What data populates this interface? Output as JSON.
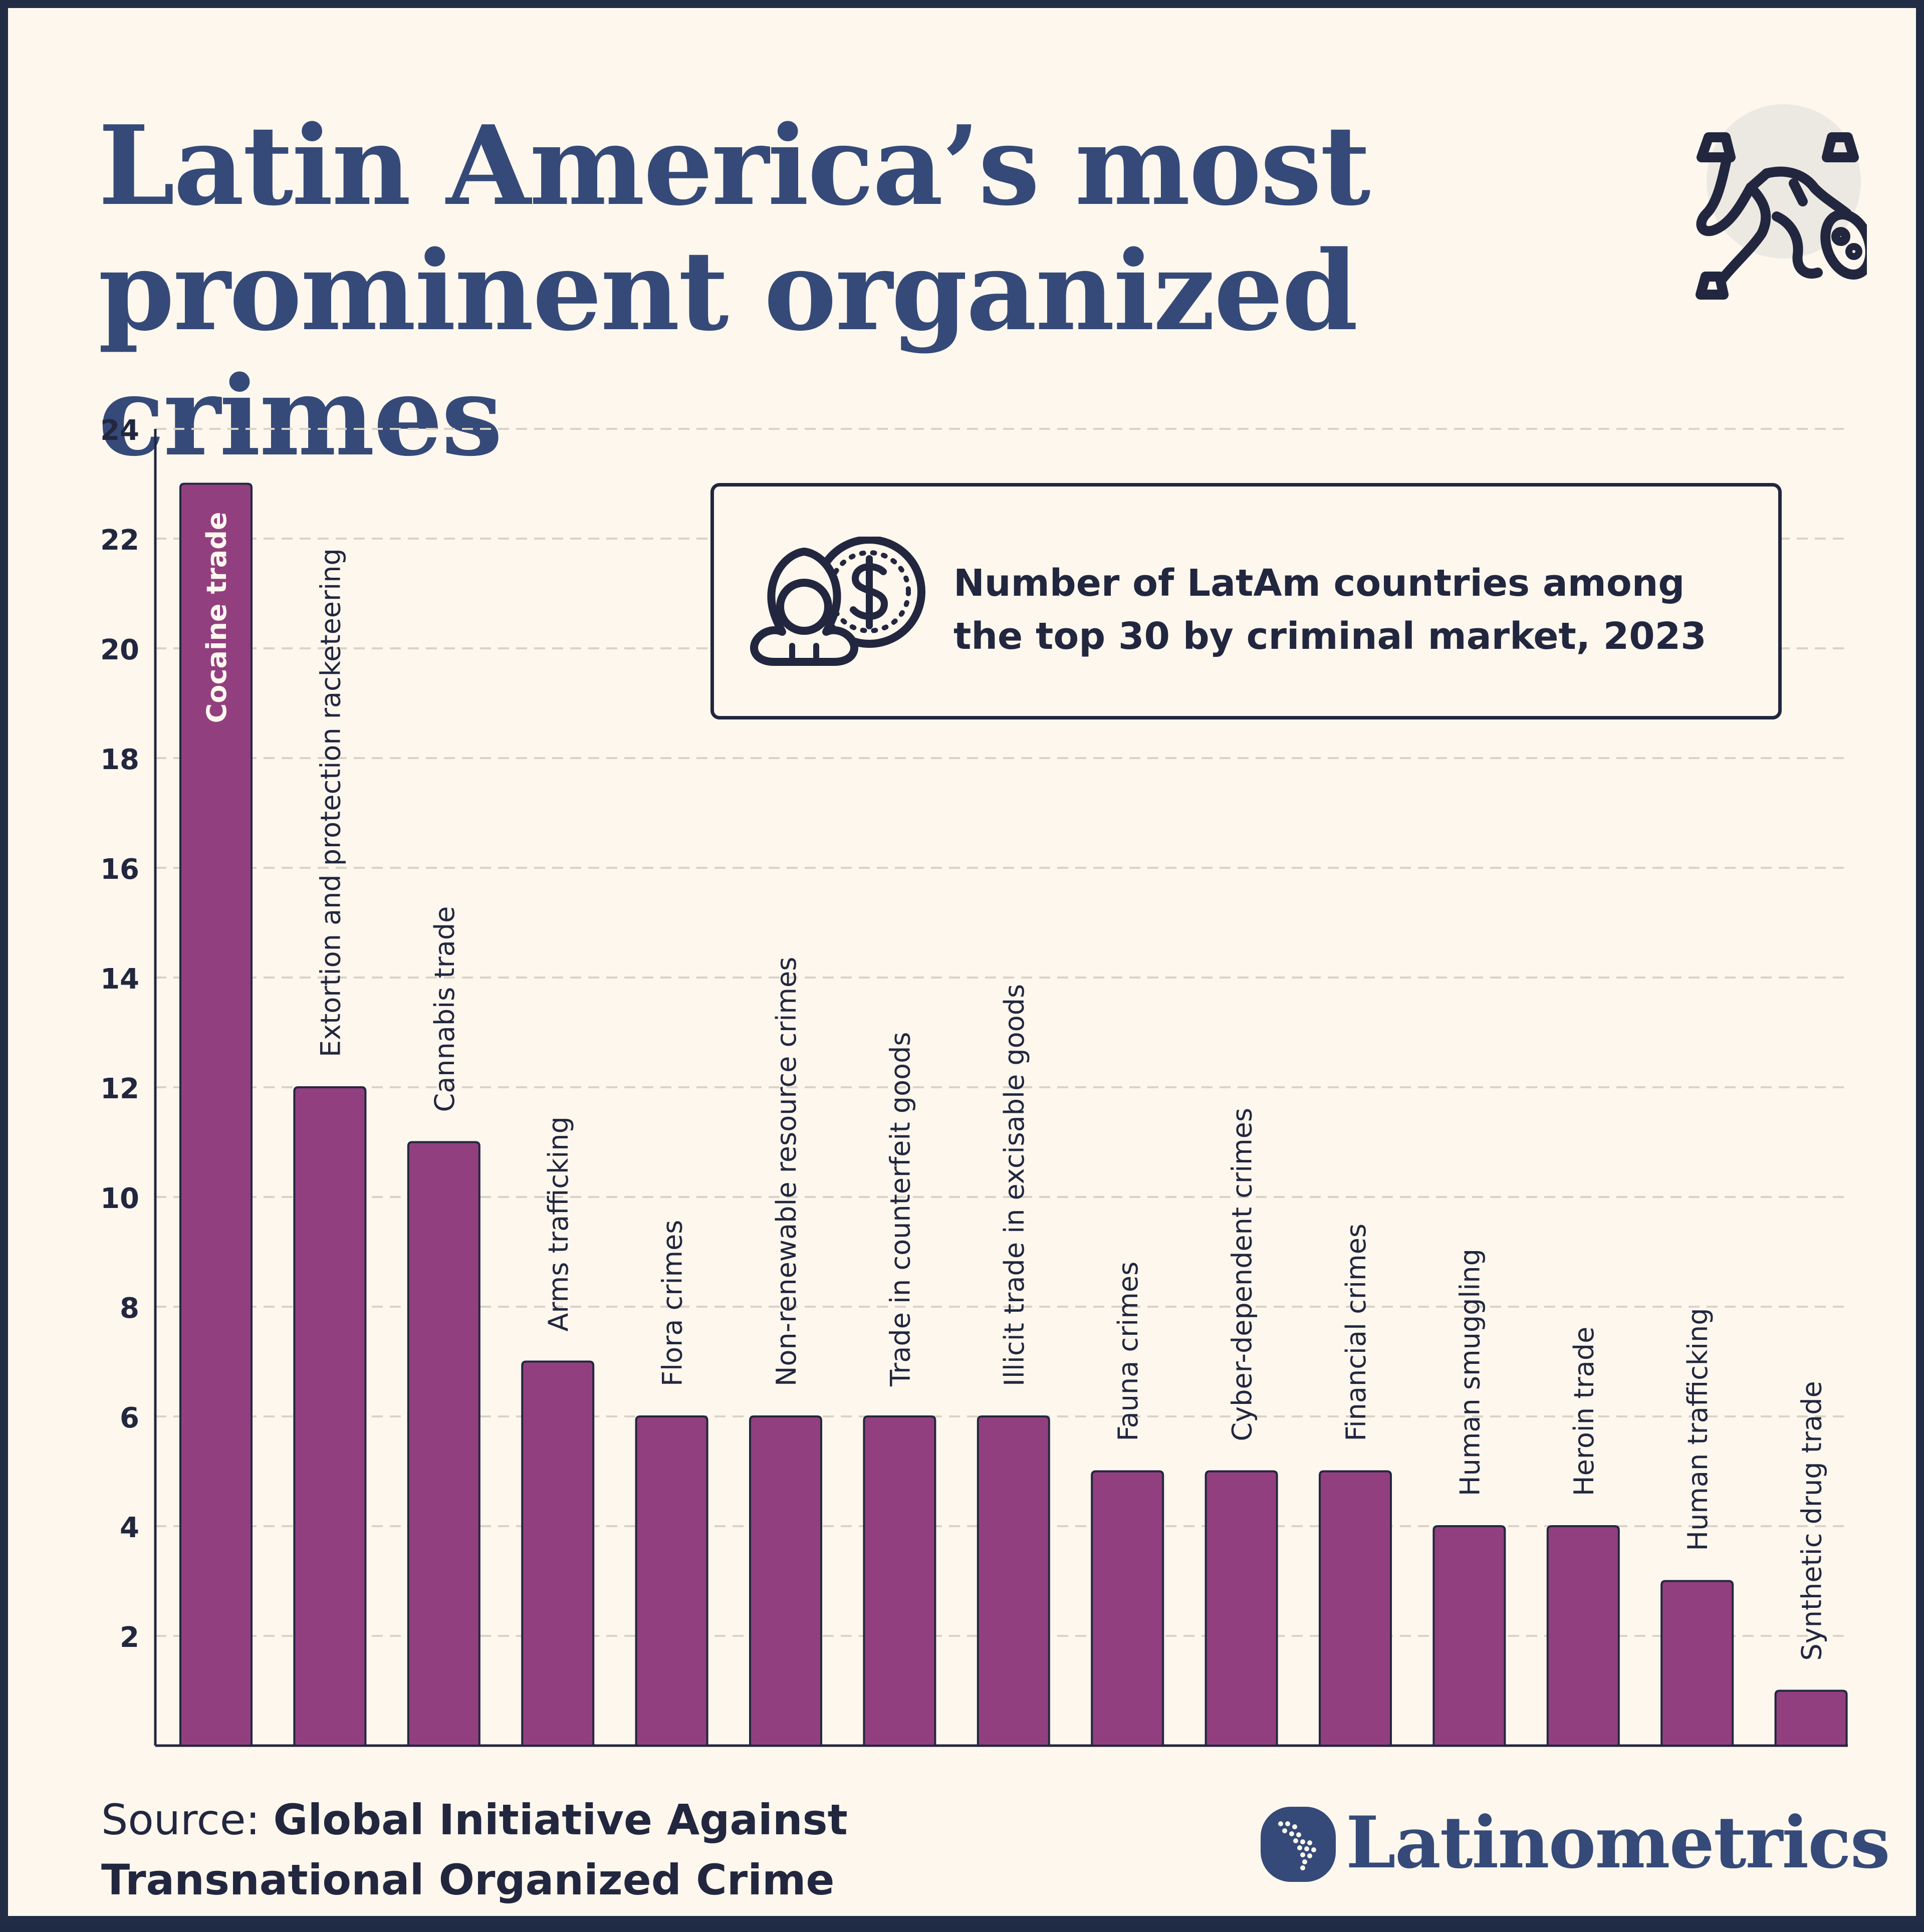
{
  "title": {
    "line1": "Latin America’s most",
    "line2": "prominent organized crimes"
  },
  "legend": {
    "line1": "Number of LatAm countries among",
    "line2": "the top 30 by criminal market, 2023"
  },
  "source": {
    "label": "Source: ",
    "org_line1": "Global Initiative Against",
    "org_line2": "Transnational Organized Crime"
  },
  "brand": {
    "name": "Latinometrics"
  },
  "icons": {
    "hero": "fallen-person-icon",
    "legend": "money-bag-coin-icon",
    "brand": "latin-america-map-logo-icon"
  },
  "colors": {
    "background": "#fdf7ee",
    "bar": "#923f7f",
    "bar_outline": "#22273f",
    "title": "#354a78",
    "text": "#22273f",
    "grid": "#d9d2c6"
  },
  "chart_data": {
    "type": "bar",
    "orientation": "vertical",
    "categories": [
      "Cocaine trade",
      "Extortion and protection racketeering",
      "Cannabis trade",
      "Arms trafficking",
      "Flora crimes",
      "Non-renewable resource crimes",
      "Trade in counterfeit goods",
      "Illicit trade in excisable goods",
      "Fauna crimes",
      "Cyber-dependent crimes",
      "Financial crimes",
      "Human smuggling",
      "Heroin trade",
      "Human trafficking",
      "Synthetic drug trade"
    ],
    "values": [
      23,
      12,
      11,
      7,
      6,
      6,
      6,
      6,
      5,
      5,
      5,
      4,
      4,
      3,
      1
    ],
    "ylim": [
      0,
      24
    ],
    "yticks": [
      2,
      4,
      6,
      8,
      10,
      12,
      14,
      16,
      18,
      20,
      22,
      24
    ],
    "grid": true,
    "title": "Number of LatAm countries among the top 30 by criminal market, 2023",
    "xlabel": "",
    "ylabel": ""
  }
}
